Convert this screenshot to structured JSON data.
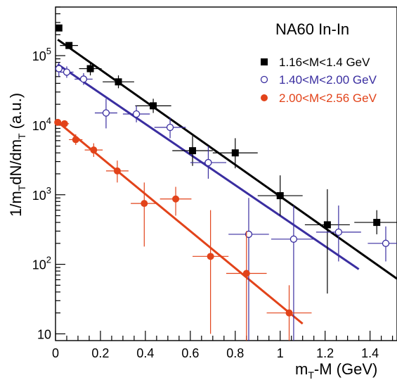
{
  "chart_data": {
    "type": "scatter",
    "title": "NA60 In-In",
    "xlabel_main": "m",
    "xlabel_sub": "T",
    "xlabel_rest": "-M (GeV)",
    "ylabel_parts": [
      {
        "t": "1/m",
        "sub": false
      },
      {
        "t": "T",
        "sub": true
      },
      {
        "t": "dN/dm",
        "sub": false
      },
      {
        "t": "T",
        "sub": true
      },
      {
        "t": " (a.u.)",
        "sub": false
      }
    ],
    "xlim": [
      0,
      1.52
    ],
    "ylim": [
      8,
      500000
    ],
    "yscale": "log",
    "x_ticks": [
      {
        "v": 0,
        "label": "0"
      },
      {
        "v": 0.2,
        "label": "0.2"
      },
      {
        "v": 0.4,
        "label": "0.4"
      },
      {
        "v": 0.6,
        "label": "0.6"
      },
      {
        "v": 0.8,
        "label": "0.8"
      },
      {
        "v": 1.0,
        "label": "1"
      },
      {
        "v": 1.2,
        "label": "1.2"
      },
      {
        "v": 1.4,
        "label": "1.4"
      }
    ],
    "y_ticks": [
      {
        "v": 10,
        "base": "10",
        "exp": ""
      },
      {
        "v": 100,
        "base": "10",
        "exp": "2"
      },
      {
        "v": 1000,
        "base": "10",
        "exp": "3"
      },
      {
        "v": 10000,
        "base": "10",
        "exp": "4"
      },
      {
        "v": 100000,
        "base": "10",
        "exp": "5"
      }
    ],
    "legend_position": "top-right",
    "series": [
      {
        "name": "1.16<M<1.4 GeV",
        "color": "#000000",
        "marker": "square",
        "points": [
          {
            "x": 0.015,
            "y": 250000,
            "xerr": 0.0,
            "ylo": 230000,
            "yhi": 270000
          },
          {
            "x": 0.06,
            "y": 140000,
            "xerr": 0.04,
            "ylo": 125000,
            "yhi": 155000
          },
          {
            "x": 0.155,
            "y": 65000,
            "xerr": 0.05,
            "ylo": 52000,
            "yhi": 80000
          },
          {
            "x": 0.28,
            "y": 42000,
            "xerr": 0.07,
            "ylo": 34000,
            "yhi": 52000
          },
          {
            "x": 0.435,
            "y": 19000,
            "xerr": 0.08,
            "ylo": 15000,
            "yhi": 24000
          },
          {
            "x": 0.61,
            "y": 4300,
            "xerr": 0.09,
            "ylo": 2600,
            "yhi": 7000
          },
          {
            "x": 0.8,
            "y": 4000,
            "xerr": 0.1,
            "ylo": 2400,
            "yhi": 6500
          },
          {
            "x": 1.0,
            "y": 970,
            "xerr": 0.1,
            "ylo": 500,
            "yhi": 1900
          },
          {
            "x": 1.21,
            "y": 370,
            "xerr": 0.1,
            "ylo": 38,
            "yhi": 1200
          },
          {
            "x": 1.43,
            "y": 400,
            "xerr": 0.1,
            "ylo": 270,
            "yhi": 600
          }
        ],
        "fit": {
          "x1": 0.01,
          "y1": 170000,
          "x2": 1.52,
          "y2": 62
        }
      },
      {
        "name": "1.40<M<2.00 GeV",
        "color": "#3a2ea0",
        "marker": "open-circle",
        "points": [
          {
            "x": 0.015,
            "y": 65000,
            "xerr": 0.0,
            "ylo": 50000,
            "yhi": 80000
          },
          {
            "x": 0.05,
            "y": 58000,
            "xerr": 0.03,
            "ylo": 48000,
            "yhi": 70000
          },
          {
            "x": 0.125,
            "y": 46000,
            "xerr": 0.04,
            "ylo": 38000,
            "yhi": 56000
          },
          {
            "x": 0.225,
            "y": 15000,
            "xerr": 0.05,
            "ylo": 9000,
            "yhi": 24000
          },
          {
            "x": 0.36,
            "y": 14500,
            "xerr": 0.06,
            "ylo": 11000,
            "yhi": 19000
          },
          {
            "x": 0.51,
            "y": 9300,
            "xerr": 0.07,
            "ylo": 6500,
            "yhi": 13000
          },
          {
            "x": 0.68,
            "y": 2900,
            "xerr": 0.08,
            "ylo": 1700,
            "yhi": 5000
          },
          {
            "x": 0.86,
            "y": 270,
            "xerr": 0.09,
            "ylo": 8,
            "yhi": 900
          },
          {
            "x": 1.06,
            "y": 230,
            "xerr": 0.1,
            "ylo": 8,
            "yhi": 700
          },
          {
            "x": 1.26,
            "y": 290,
            "xerr": 0.1,
            "ylo": 110,
            "yhi": 700
          },
          {
            "x": 1.47,
            "y": 200,
            "xerr": 0.08,
            "ylo": 110,
            "yhi": 350
          }
        ],
        "fit": {
          "x1": 0.01,
          "y1": 75000,
          "x2": 1.35,
          "y2": 85
        }
      },
      {
        "name": "2.00<M<2.56 GeV",
        "color": "#e2431a",
        "marker": "filled-circle",
        "points": [
          {
            "x": 0.01,
            "y": 11000,
            "xerr": 0.0,
            "ylo": 10000,
            "yhi": 12000
          },
          {
            "x": 0.04,
            "y": 10500,
            "xerr": 0.02,
            "ylo": 9500,
            "yhi": 11500
          },
          {
            "x": 0.09,
            "y": 6200,
            "xerr": 0.03,
            "ylo": 5200,
            "yhi": 7400
          },
          {
            "x": 0.17,
            "y": 4400,
            "xerr": 0.04,
            "ylo": 3500,
            "yhi": 5500
          },
          {
            "x": 0.275,
            "y": 2200,
            "xerr": 0.05,
            "ylo": 1500,
            "yhi": 3100
          },
          {
            "x": 0.395,
            "y": 750,
            "xerr": 0.06,
            "ylo": 180,
            "yhi": 1500
          },
          {
            "x": 0.535,
            "y": 870,
            "xerr": 0.07,
            "ylo": 500,
            "yhi": 1300
          },
          {
            "x": 0.69,
            "y": 130,
            "xerr": 0.08,
            "ylo": 10,
            "yhi": 600
          },
          {
            "x": 0.85,
            "y": 74,
            "xerr": 0.09,
            "ylo": 8,
            "yhi": 300
          },
          {
            "x": 1.04,
            "y": 20,
            "xerr": 0.1,
            "ylo": 8,
            "yhi": 50
          }
        ],
        "fit": {
          "x1": 0.005,
          "y1": 11500,
          "x2": 1.1,
          "y2": 14
        }
      }
    ]
  }
}
